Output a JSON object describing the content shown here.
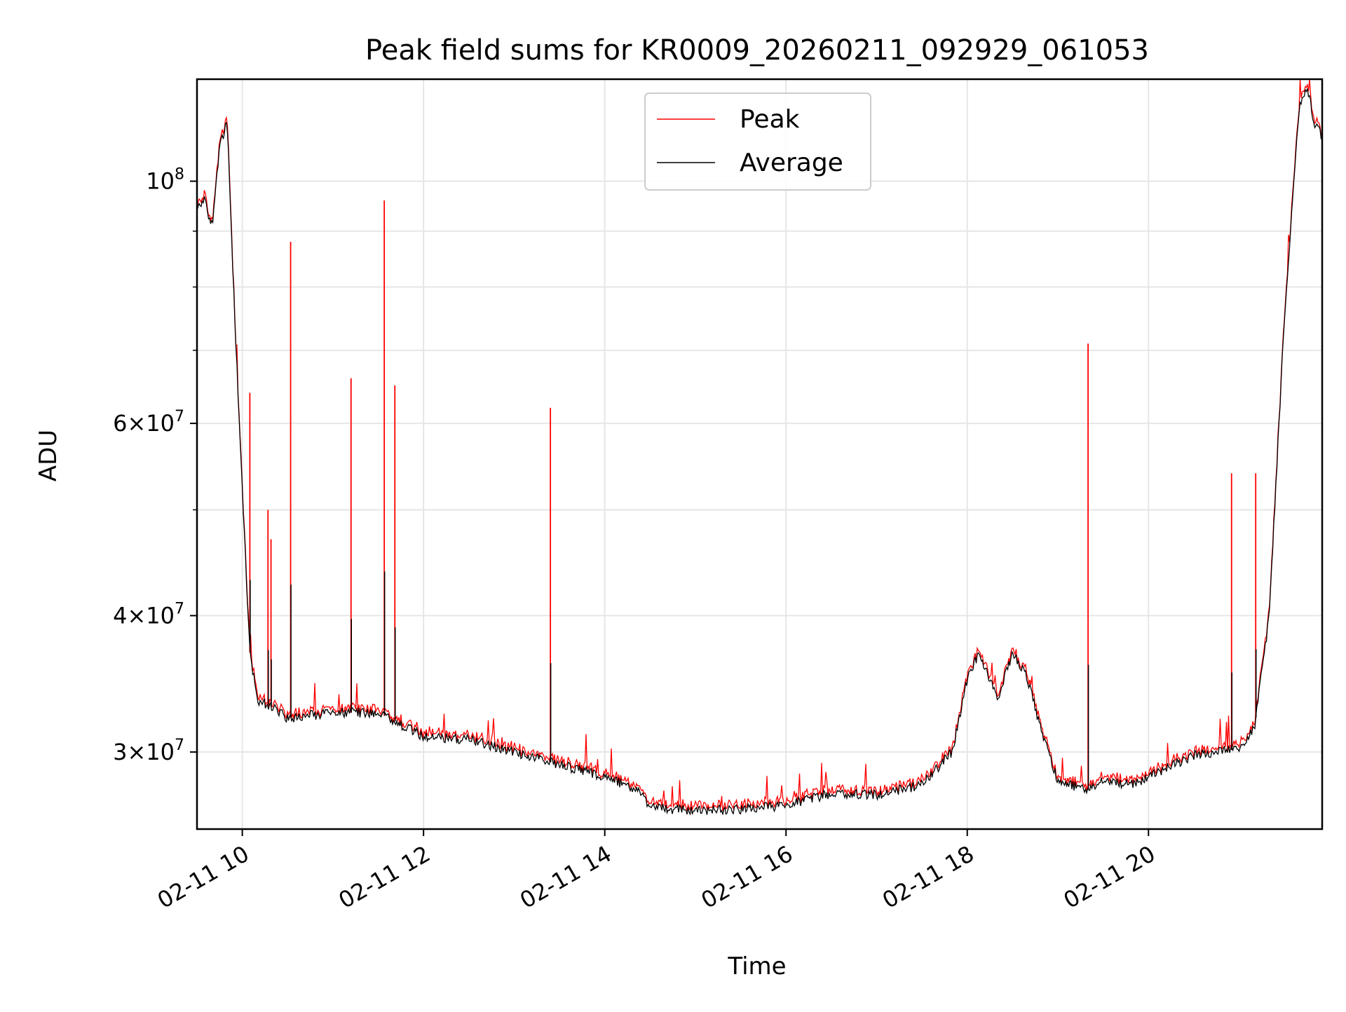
{
  "chart_data": {
    "type": "line",
    "title": "Peak field sums for KR0009_20260211_092929_061053",
    "xlabel": "Time",
    "ylabel": "ADU",
    "x_axis_type": "datetime",
    "xlim": [
      "2026-02-11 09:30",
      "2026-02-11 21:55"
    ],
    "yscale": "log",
    "ylim": [
      25500000,
      124000000
    ],
    "grid": true,
    "legend_position": "top-center",
    "x_ticks": [
      "2026-02-11 10:00",
      "2026-02-11 12:00",
      "2026-02-11 14:00",
      "2026-02-11 16:00",
      "2026-02-11 18:00",
      "2026-02-11 20:00"
    ],
    "x_tick_labels": [
      "02-11 10",
      "02-11 12",
      "02-11 14",
      "02-11 16",
      "02-11 18",
      "02-11 20"
    ],
    "y_ticks": [
      30000000,
      40000000,
      60000000,
      100000000
    ],
    "y_tick_labels": [
      {
        "base": "3",
        "times": "×",
        "exp_base": "10",
        "exp": "7"
      },
      {
        "base": "4",
        "times": "×",
        "exp_base": "10",
        "exp": "7"
      },
      {
        "base": "6",
        "times": "×",
        "exp_base": "10",
        "exp": "7"
      },
      {
        "base": "",
        "times": "",
        "exp_base": "10",
        "exp": "8"
      }
    ],
    "y_minor_ticks": [
      50000000,
      70000000,
      80000000,
      90000000
    ],
    "series": [
      {
        "name": "Average",
        "color": "#000000",
        "x": [
          "2026-02-11 09:30",
          "2026-02-11 09:35",
          "2026-02-11 09:40",
          "2026-02-11 09:45",
          "2026-02-11 09:50",
          "2026-02-11 09:55",
          "2026-02-11 10:00",
          "2026-02-11 10:05",
          "2026-02-11 10:10",
          "2026-02-11 10:20",
          "2026-02-11 10:30",
          "2026-02-11 11:00",
          "2026-02-11 11:30",
          "2026-02-11 12:00",
          "2026-02-11 12:30",
          "2026-02-11 13:00",
          "2026-02-11 13:30",
          "2026-02-11 14:00",
          "2026-02-11 14:25",
          "2026-02-11 14:30",
          "2026-02-11 15:00",
          "2026-02-11 15:30",
          "2026-02-11 16:00",
          "2026-02-11 16:30",
          "2026-02-11 17:00",
          "2026-02-11 17:30",
          "2026-02-11 17:50",
          "2026-02-11 18:00",
          "2026-02-11 18:08",
          "2026-02-11 18:20",
          "2026-02-11 18:30",
          "2026-02-11 18:40",
          "2026-02-11 18:50",
          "2026-02-11 19:00",
          "2026-02-11 19:20",
          "2026-02-11 19:30",
          "2026-02-11 19:50",
          "2026-02-11 20:00",
          "2026-02-11 20:30",
          "2026-02-11 21:00",
          "2026-02-11 21:10",
          "2026-02-11 21:20",
          "2026-02-11 21:30",
          "2026-02-11 21:40",
          "2026-02-11 21:45",
          "2026-02-11 21:50",
          "2026-02-11 21:55"
        ],
        "values": [
          94000000,
          96000000,
          91000000,
          108000000,
          113000000,
          75000000,
          52000000,
          37000000,
          33500000,
          33000000,
          32200000,
          32600000,
          32600000,
          31000000,
          30800000,
          30000000,
          29200000,
          28500000,
          27500000,
          26700000,
          26500000,
          26600000,
          26800000,
          27500000,
          27400000,
          28000000,
          30000000,
          35000000,
          37000000,
          33500000,
          37000000,
          35000000,
          31000000,
          28200000,
          27700000,
          28200000,
          28000000,
          28500000,
          29800000,
          30200000,
          31500000,
          40000000,
          75000000,
          118000000,
          122000000,
          113000000,
          110000000
        ]
      },
      {
        "name": "Peak",
        "color": "#ff0000",
        "spikes": [
          {
            "x": "2026-02-11 10:05",
            "y": 64000000
          },
          {
            "x": "2026-02-11 10:17",
            "y": 50000000
          },
          {
            "x": "2026-02-11 10:19",
            "y": 47000000
          },
          {
            "x": "2026-02-11 10:32",
            "y": 88000000
          },
          {
            "x": "2026-02-11 11:12",
            "y": 66000000
          },
          {
            "x": "2026-02-11 11:34",
            "y": 96000000
          },
          {
            "x": "2026-02-11 11:41",
            "y": 65000000
          },
          {
            "x": "2026-02-11 13:24",
            "y": 62000000
          },
          {
            "x": "2026-02-11 19:20",
            "y": 71000000
          },
          {
            "x": "2026-02-11 20:55",
            "y": 54000000
          },
          {
            "x": "2026-02-11 21:11",
            "y": 54000000
          }
        ]
      }
    ]
  }
}
